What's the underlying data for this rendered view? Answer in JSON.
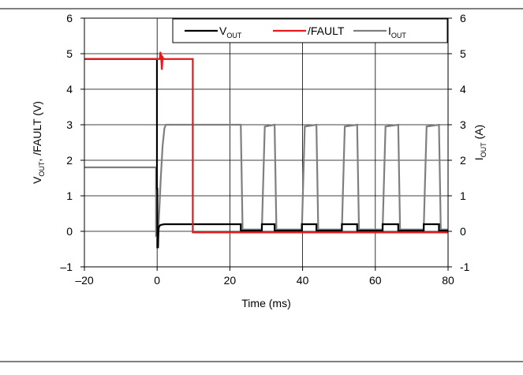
{
  "chart_data": {
    "type": "line",
    "xlabel": "Time (ms)",
    "ylabel_left": {
      "main": "V",
      "sub": "OUT",
      "rest": ", /FAULT (V)"
    },
    "ylabel_right": {
      "main": "I",
      "sub": "OUT",
      "rest": " (A)"
    },
    "xlim": [
      -20,
      80
    ],
    "ylim_left": [
      -1,
      6
    ],
    "ylim_right": [
      -1,
      6
    ],
    "x_ticks": [
      -20,
      0,
      20,
      40,
      60,
      80
    ],
    "x_tick_labels": [
      "–20",
      "0",
      "20",
      "40",
      "60",
      "80"
    ],
    "y_ticks": [
      -1,
      0,
      1,
      2,
      3,
      4,
      5,
      6
    ],
    "y_tick_labels_left": [
      "–1",
      "0",
      "1",
      "2",
      "3",
      "4",
      "5",
      "6"
    ],
    "y_tick_labels_right": [
      "-1",
      "0",
      "1",
      "2",
      "3",
      "4",
      "5",
      "6"
    ],
    "grid": true,
    "legend_position": "top-right",
    "series": [
      {
        "name": "V_OUT",
        "label": {
          "main": "V",
          "sub": "OUT"
        },
        "color": "#000000",
        "x": [
          -20,
          -0.05,
          -0.05,
          0.05,
          0.05,
          0.25,
          0.3,
          0.4,
          0.5,
          0.7,
          1.0,
          1.5,
          2.0,
          9.8,
          9.8,
          23.0,
          23.0,
          28.8,
          28.8,
          32.3,
          32.3,
          39.8,
          39.8,
          43.8,
          43.8,
          50.8,
          50.8,
          55.0,
          55.0,
          62.0,
          62.0,
          66.3,
          66.3,
          73.3,
          73.3,
          77.5,
          77.5,
          80
        ],
        "y": [
          4.85,
          4.85,
          1.2,
          1.2,
          -0.45,
          -0.45,
          -0.2,
          0.05,
          0.12,
          0.16,
          0.18,
          0.19,
          0.2,
          0.2,
          0.2,
          0.2,
          0.02,
          0.02,
          0.2,
          0.2,
          0.02,
          0.02,
          0.2,
          0.2,
          0.02,
          0.02,
          0.2,
          0.2,
          0.02,
          0.02,
          0.2,
          0.2,
          0.02,
          0.02,
          0.2,
          0.2,
          0.02,
          0.02
        ]
      },
      {
        "name": "/FAULT",
        "label": {
          "main": "/FAULT",
          "sub": ""
        },
        "color": "#e41a1c",
        "x": [
          -20,
          0.7,
          0.9,
          1.1,
          1.3,
          1.5,
          1.8,
          2.2,
          9.8,
          9.8,
          80
        ],
        "y": [
          4.85,
          4.85,
          5.05,
          4.9,
          4.55,
          4.9,
          4.85,
          4.85,
          4.85,
          -0.03,
          -0.03
        ]
      },
      {
        "name": "I_OUT",
        "label": {
          "main": "I",
          "sub": "OUT"
        },
        "color": "#7f7f7f",
        "x": [
          -20,
          -0.3,
          -0.3,
          0.3,
          0.6,
          1.0,
          1.5,
          2.0,
          2.4,
          23.0,
          23.5,
          28.8,
          29.6,
          32.3,
          32.8,
          39.8,
          40.6,
          43.8,
          44.3,
          50.8,
          51.6,
          55.0,
          55.5,
          62.0,
          62.8,
          66.3,
          66.8,
          73.3,
          74.1,
          77.5,
          78.0,
          80
        ],
        "y": [
          1.8,
          1.8,
          -0.1,
          0.0,
          0.6,
          1.5,
          2.4,
          2.9,
          3.0,
          3.0,
          0.05,
          0.05,
          2.95,
          3.0,
          0.05,
          0.05,
          2.95,
          3.0,
          0.05,
          0.05,
          2.95,
          3.0,
          0.05,
          0.05,
          2.95,
          3.0,
          0.05,
          0.05,
          2.95,
          3.0,
          0.05,
          0.05
        ]
      }
    ]
  }
}
